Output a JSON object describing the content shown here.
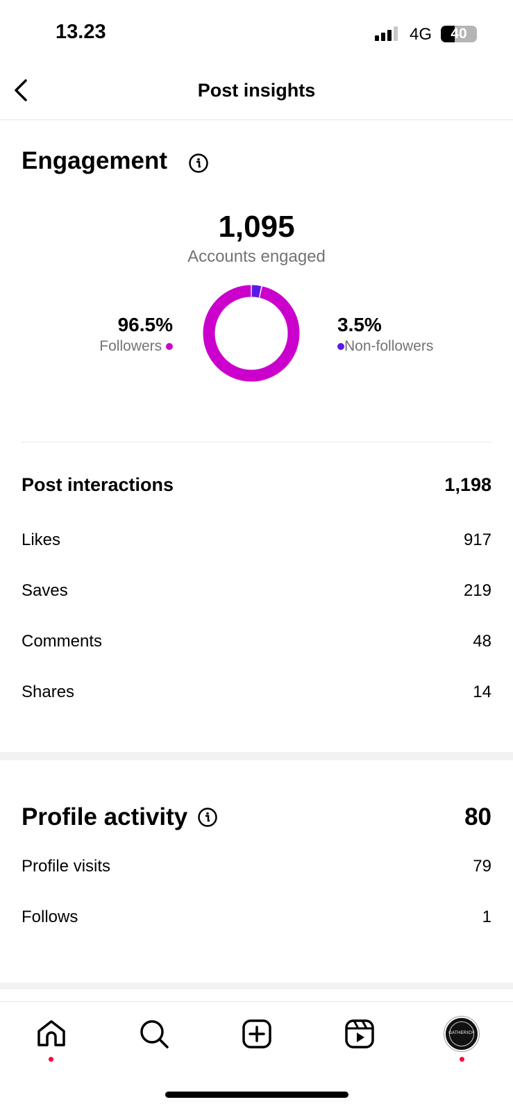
{
  "status": {
    "time": "13.23",
    "network": "4G",
    "battery": "40"
  },
  "header": {
    "title": "Post insights",
    "back_icon": "chevron-left-icon"
  },
  "engagement": {
    "title": "Engagement",
    "accounts_engaged": "1,095",
    "accounts_label": "Accounts engaged",
    "followers_pct": "96.5%",
    "followers_label": "Followers",
    "nonfollowers_pct": "3.5%",
    "nonfollowers_label": "Non-followers",
    "colors": {
      "followers": "#cc00cc",
      "non_followers": "#5a1ae6"
    },
    "chart": {
      "type": "donut",
      "values": [
        96.5,
        3.5
      ]
    }
  },
  "interactions": {
    "title": "Post interactions",
    "total": "1,198",
    "items": [
      {
        "label": "Likes",
        "value": "917"
      },
      {
        "label": "Saves",
        "value": "219"
      },
      {
        "label": "Comments",
        "value": "48"
      },
      {
        "label": "Shares",
        "value": "14"
      }
    ]
  },
  "profile": {
    "title": "Profile activity",
    "total": "80",
    "items": [
      {
        "label": "Profile visits",
        "value": "79"
      },
      {
        "label": "Follows",
        "value": "1"
      }
    ]
  },
  "nav": {
    "items": [
      "home-icon",
      "search-icon",
      "create-icon",
      "reels-icon",
      "profile-avatar"
    ],
    "avatar_logo_text": "GATHERICH"
  }
}
